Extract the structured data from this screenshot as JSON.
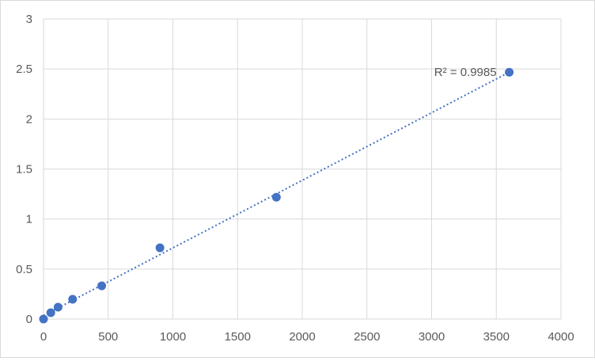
{
  "chart_data": {
    "type": "scatter",
    "title": "",
    "xlabel": "",
    "ylabel": "",
    "xlim": [
      0,
      4000
    ],
    "ylim": [
      0,
      3
    ],
    "x_ticks": [
      "0",
      "500",
      "1000",
      "1500",
      "2000",
      "2500",
      "3000",
      "3500",
      "4000"
    ],
    "y_ticks": [
      "0",
      "0.5",
      "1",
      "1.5",
      "2",
      "2.5",
      "3"
    ],
    "grid": true,
    "x": [
      0,
      56.25,
      112.5,
      225,
      450,
      900,
      1800,
      3600
    ],
    "y": [
      0,
      0.063,
      0.119,
      0.198,
      0.332,
      0.712,
      1.218,
      2.468
    ],
    "trendline": {
      "type": "linear",
      "style": "dotted",
      "label": "R² = 0.9985"
    },
    "colors": {
      "marker": "#4472c4",
      "grid": "#d9d9d9",
      "text": "#595959"
    }
  }
}
